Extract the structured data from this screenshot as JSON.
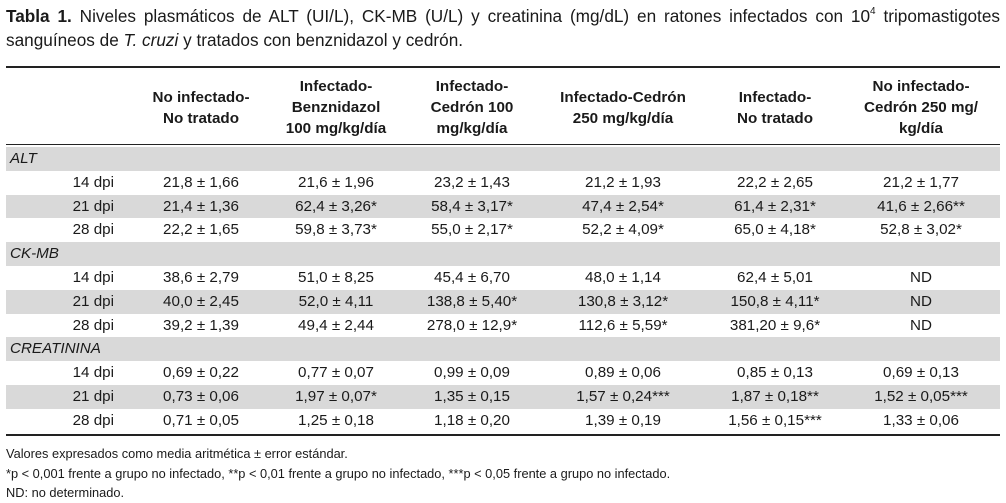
{
  "caption": {
    "label": "Tabla 1.",
    "text_before_sup": " Niveles plasmáticos de ALT (UI/L), CK-MB (U/L) y creatinina (mg/dL) en ratones infectados con 10",
    "sup": "4",
    "text_line2_before_italic": " tripomastigotes sanguíneos de ",
    "italic": "T. cruzi",
    "text_after_italic": " y tratados con benznidazol y cedrón."
  },
  "table": {
    "headers": [
      "",
      "No infectado-\nNo tratado",
      "Infectado-\nBenznidazol\n100 mg/kg/día",
      "Infectado-\nCedrón 100\nmg/kg/día",
      "Infectado-Cedrón\n250 mg/kg/día",
      "Infectado-\nNo tratado",
      "No infectado-\nCedrón 250 mg/\nkg/día"
    ],
    "sections": [
      {
        "name": "ALT",
        "rows": [
          [
            "14 dpi",
            "21,8 ± 1,66",
            "21,6 ± 1,96",
            "23,2 ± 1,43",
            "21,2 ± 1,93",
            "22,2 ± 2,65",
            "21,2 ± 1,77"
          ],
          [
            "21 dpi",
            "21,4 ± 1,36",
            "62,4 ± 3,26*",
            "58,4 ± 3,17*",
            "47,4 ± 2,54*",
            "61,4 ± 2,31*",
            "41,6 ± 2,66**"
          ],
          [
            "28 dpi",
            "22,2 ± 1,65",
            "59,8 ± 3,73*",
            "55,0 ± 2,17*",
            "52,2 ± 4,09*",
            "65,0 ± 4,18*",
            "52,8 ± 3,02*"
          ]
        ]
      },
      {
        "name": "CK-MB",
        "rows": [
          [
            "14 dpi",
            "38,6 ± 2,79",
            "51,0 ± 8,25",
            "45,4 ± 6,70",
            "48,0 ± 1,14",
            "62,4 ± 5,01",
            "ND"
          ],
          [
            "21 dpi",
            "40,0 ± 2,45",
            "52,0 ± 4,11",
            "138,8 ± 5,40*",
            "130,8 ± 3,12*",
            "150,8 ± 4,11*",
            "ND"
          ],
          [
            "28 dpi",
            "39,2 ± 1,39",
            "49,4 ± 2,44",
            "278,0 ± 12,9*",
            "112,6 ± 5,59*",
            "381,20 ± 9,6*",
            "ND"
          ]
        ]
      },
      {
        "name": "CREATININA",
        "rows": [
          [
            "14 dpi",
            "0,69 ± 0,22",
            "0,77 ± 0,07",
            "0,99 ± 0,09",
            "0,89 ± 0,06",
            "0,85 ± 0,13",
            "0,69 ± 0,13"
          ],
          [
            "21 dpi",
            "0,73 ± 0,06",
            "1,97 ± 0,07*",
            "1,35 ± 0,15",
            "1,57 ± 0,24***",
            "1,87 ± 0,18**",
            "1,52 ± 0,05***"
          ],
          [
            "28 dpi",
            "0,71 ± 0,05",
            "1,25 ± 0,18",
            "1,18 ± 0,20",
            "1,39 ± 0,19",
            "1,56 ± 0,15***",
            "1,33 ± 0,06"
          ]
        ]
      }
    ]
  },
  "notes": [
    "Valores expresados como media aritmética  ± error estándar.",
    "*p < 0,001 frente a grupo no infectado, **p < 0,01 frente a grupo no infectado, ***p < 0,05 frente a grupo no infectado.",
    "ND: no determinado."
  ],
  "colors": {
    "shade": "#d9d9d9",
    "text": "#1a1a1a",
    "rule": "#222222"
  }
}
